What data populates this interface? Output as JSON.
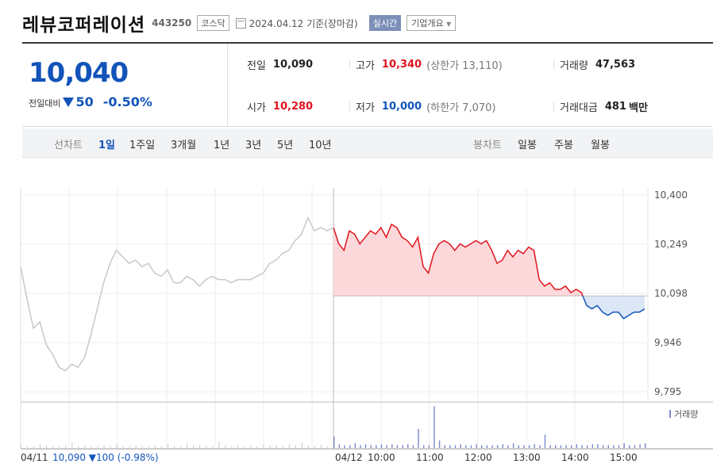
{
  "header": {
    "company_name": "레뷰코퍼레이션",
    "code": "443250",
    "market": "코스닥",
    "date": "2024.04.12 기준(장마감)",
    "realtime_label": "실시간",
    "overview_label": "기업개요"
  },
  "summary": {
    "current_price": "10,040",
    "change_label": "전일대비",
    "change_value": "50",
    "change_pct": "-0.50%",
    "prev_close_label": "전일",
    "prev_close": "10,090",
    "high_label": "고가",
    "high": "10,340",
    "upper_limit": "(상한가 13,110)",
    "volume_label": "거래량",
    "volume": "47,563",
    "open_label": "시가",
    "open": "10,280",
    "low_label": "저가",
    "low": "10,000",
    "lower_limit": "(하한가 7,070)",
    "amount_label": "거래대금",
    "amount": "481",
    "amount_unit": "백만"
  },
  "tabs": {
    "line_label": "선차트",
    "line_items": [
      "1일",
      "1주일",
      "3개월",
      "1년",
      "3년",
      "5년",
      "10년"
    ],
    "candle_label": "봉차트",
    "candle_items": [
      "일봉",
      "주봉",
      "월봉"
    ]
  },
  "colors": {
    "up": "#e0141e",
    "down": "#1254b9",
    "prev_day": "#c8c8c8"
  },
  "chart_data": {
    "type": "line",
    "y_ticks": [
      "10,400",
      "10,249",
      "10,098",
      "9,946",
      "9,795"
    ],
    "ylim": [
      9795,
      10400
    ],
    "baseline": 10090,
    "volume_legend": "거래량",
    "x_labels": [
      "04/12",
      "10:00",
      "11:00",
      "12:00",
      "13:00",
      "14:00",
      "15:00"
    ],
    "prev_day_label": "04/11",
    "prev_day_summary": "10,090 ▼100 (-0.98%)",
    "prev_day_series": [
      10180,
      10080,
      9990,
      10010,
      9940,
      9910,
      9870,
      9860,
      9880,
      9870,
      9900,
      9970,
      10050,
      10130,
      10190,
      10230,
      10210,
      10190,
      10200,
      10180,
      10190,
      10160,
      10150,
      10170,
      10130,
      10130,
      10150,
      10140,
      10120,
      10140,
      10150,
      10140,
      10140,
      10130,
      10140,
      10140,
      10140,
      10150,
      10160,
      10190,
      10200,
      10220,
      10230,
      10260,
      10280,
      10330,
      10290,
      10300,
      10290,
      10300
    ],
    "today_series": [
      10300,
      10250,
      10230,
      10290,
      10280,
      10250,
      10270,
      10290,
      10280,
      10300,
      10270,
      10310,
      10300,
      10270,
      10260,
      10240,
      10270,
      10180,
      10160,
      10220,
      10250,
      10260,
      10250,
      10230,
      10250,
      10240,
      10250,
      10260,
      10250,
      10260,
      10230,
      10190,
      10200,
      10230,
      10210,
      10230,
      10220,
      10240,
      10230,
      10140,
      10120,
      10130,
      10110,
      10110,
      10120,
      10100,
      10110,
      10100,
      10060,
      10050,
      10060,
      10040,
      10030,
      10040,
      10040,
      10020,
      10030,
      10040,
      10040,
      10050
    ],
    "volume_prev": [
      3,
      2,
      2,
      4,
      3,
      2,
      2,
      3,
      6,
      2,
      3,
      2,
      2,
      3,
      2,
      4,
      2,
      2,
      3,
      2,
      2,
      3,
      2,
      4,
      2,
      2,
      5,
      3,
      3,
      2,
      2,
      7,
      3,
      2,
      3,
      2,
      3,
      2,
      4,
      3,
      3,
      2,
      4,
      3,
      6,
      3,
      2,
      3,
      2,
      2
    ],
    "volume_today": [
      12,
      4,
      3,
      3,
      5,
      3,
      4,
      3,
      3,
      4,
      3,
      4,
      3,
      3,
      4,
      3,
      20,
      3,
      3,
      44,
      8,
      3,
      3,
      3,
      4,
      3,
      3,
      4,
      3,
      3,
      3,
      3,
      4,
      3,
      5,
      3,
      3,
      3,
      4,
      3,
      14,
      3,
      3,
      3,
      3,
      3,
      4,
      3,
      3,
      4,
      4,
      3,
      3,
      3,
      3,
      5,
      3,
      3,
      4,
      5
    ]
  }
}
